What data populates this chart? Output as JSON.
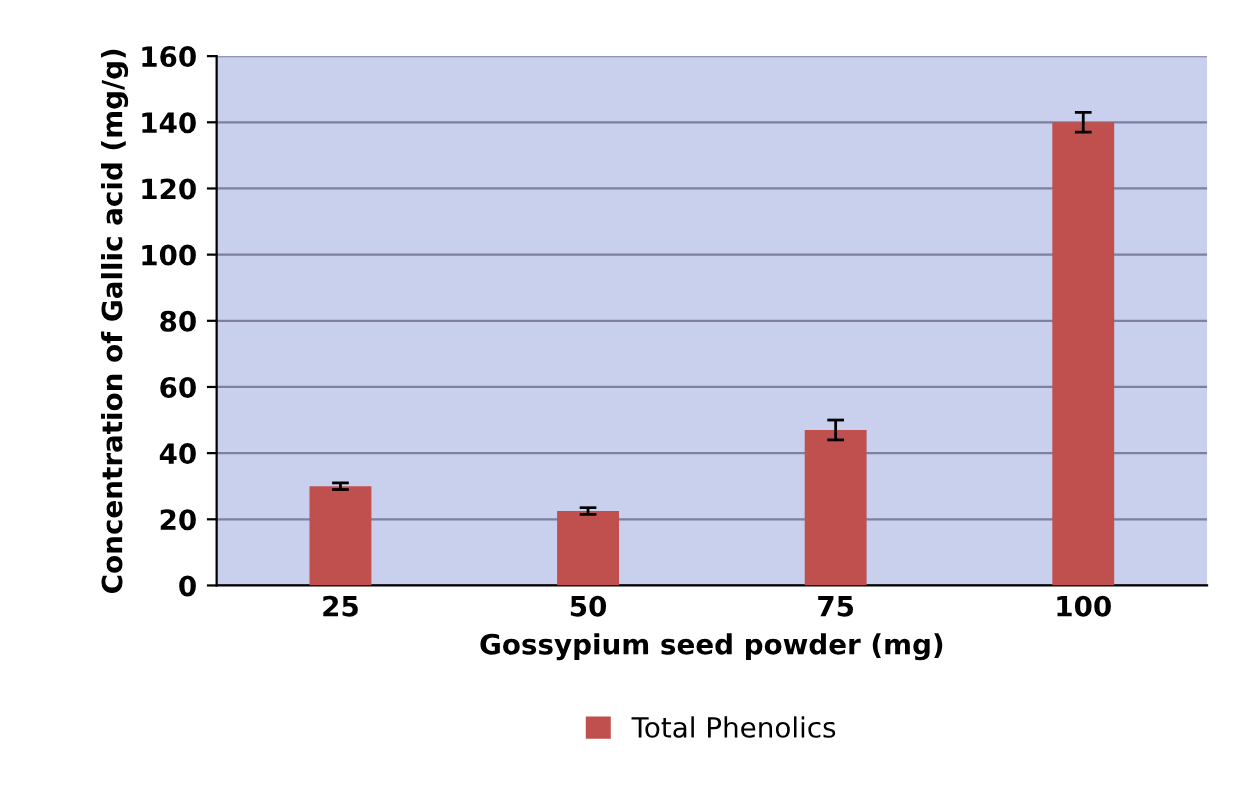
{
  "chart_data": {
    "type": "bar",
    "xlabel": "Gossypium seed powder (mg)",
    "ylabel": "Concentration of Gallic acid (mg/g)",
    "categories": [
      "25",
      "50",
      "75",
      "100"
    ],
    "series": [
      {
        "name": "Total Phenolics",
        "color": "#c0504d",
        "values": [
          30,
          22.5,
          47,
          140
        ],
        "errors": [
          1,
          1,
          3,
          3
        ]
      }
    ],
    "ylim": [
      0,
      160
    ],
    "yticks": [
      0,
      20,
      40,
      60,
      80,
      100,
      120,
      140,
      160
    ],
    "grid": "y",
    "legend": "bottom"
  }
}
